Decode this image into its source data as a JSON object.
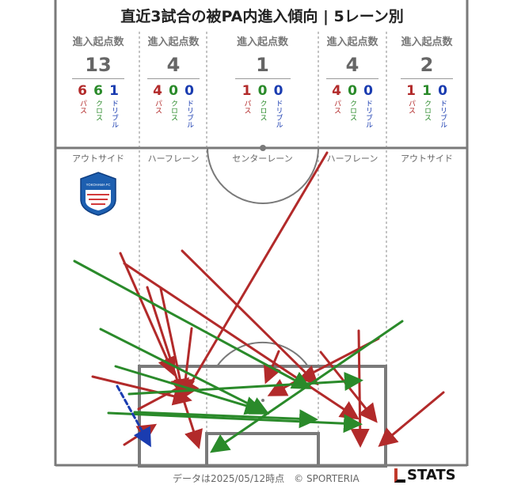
{
  "title": "直近3試合の被PA内進入傾向 | 5レーン別",
  "stat_label": "進入起点数",
  "type_labels": {
    "pass": "パス",
    "cross": "クロス",
    "dribble": "ドリブル"
  },
  "lanes": [
    {
      "name": "アウトサイド",
      "total": "13",
      "pass": "6",
      "cross": "6",
      "dribble": "1"
    },
    {
      "name": "ハーフレーン",
      "total": "4",
      "pass": "4",
      "cross": "0",
      "dribble": "0"
    },
    {
      "name": "センターレーン",
      "total": "1",
      "pass": "1",
      "cross": "0",
      "dribble": "0"
    },
    {
      "name": "ハーフレーン",
      "total": "4",
      "pass": "4",
      "cross": "0",
      "dribble": "0"
    },
    {
      "name": "アウトサイド",
      "total": "2",
      "pass": "1",
      "cross": "1",
      "dribble": "0"
    }
  ],
  "colors": {
    "pass": "#b22a2a",
    "cross": "#2a8a2a",
    "dribble": "#1a3cb0",
    "pitch_line": "#7a7a7a"
  },
  "footer": "データは2025/05/12時点　© SPORTERIA",
  "brand": "STATS",
  "badge_text": "YOKOHAMA FC",
  "arrows": [
    {
      "type": "pass",
      "from": [
        413,
        193
      ],
      "to": [
        232,
        500
      ]
    },
    {
      "type": "pass",
      "from": [
        230,
        317
      ],
      "to": [
        398,
        483
      ]
    },
    {
      "type": "pass",
      "from": [
        157,
        333
      ],
      "to": [
        449,
        527
      ]
    },
    {
      "type": "pass",
      "from": [
        152,
        320
      ],
      "to": [
        218,
        470
      ]
    },
    {
      "type": "pass",
      "from": [
        186,
        363
      ],
      "to": [
        250,
        562
      ]
    },
    {
      "type": "pass",
      "from": [
        203,
        365
      ],
      "to": [
        231,
        497
      ]
    },
    {
      "type": "pass",
      "from": [
        242,
        415
      ],
      "to": [
        232,
        498
      ]
    },
    {
      "type": "pass",
      "from": [
        352,
        444
      ],
      "to": [
        337,
        480
      ]
    },
    {
      "type": "pass",
      "from": [
        405,
        445
      ],
      "to": [
        473,
        530
      ]
    },
    {
      "type": "pass",
      "from": [
        453,
        418
      ],
      "to": [
        455,
        560
      ]
    },
    {
      "type": "pass",
      "from": [
        478,
        428
      ],
      "to": [
        343,
        498
      ]
    },
    {
      "type": "pass",
      "from": [
        560,
        496
      ],
      "to": [
        482,
        561
      ]
    },
    {
      "type": "pass",
      "from": [
        117,
        476
      ],
      "to": [
        237,
        505
      ]
    },
    {
      "type": "pass",
      "from": [
        157,
        562
      ],
      "to": [
        193,
        539
      ]
    },
    {
      "type": "pass",
      "from": [
        175,
        517
      ],
      "to": [
        241,
        482
      ]
    },
    {
      "type": "cross",
      "from": [
        94,
        330
      ],
      "to": [
        388,
        489
      ]
    },
    {
      "type": "cross",
      "from": [
        127,
        416
      ],
      "to": [
        335,
        521
      ]
    },
    {
      "type": "cross",
      "from": [
        146,
        463
      ],
      "to": [
        328,
        518
      ]
    },
    {
      "type": "cross",
      "from": [
        163,
        498
      ],
      "to": [
        453,
        481
      ]
    },
    {
      "type": "cross",
      "from": [
        137,
        522
      ],
      "to": [
        452,
        536
      ]
    },
    {
      "type": "cross",
      "from": [
        170,
        521
      ],
      "to": [
        396,
        530
      ]
    },
    {
      "type": "cross",
      "from": [
        508,
        406
      ],
      "to": [
        270,
        569
      ]
    },
    {
      "type": "dribble",
      "from": [
        148,
        488
      ],
      "to": [
        188,
        560
      ]
    }
  ]
}
